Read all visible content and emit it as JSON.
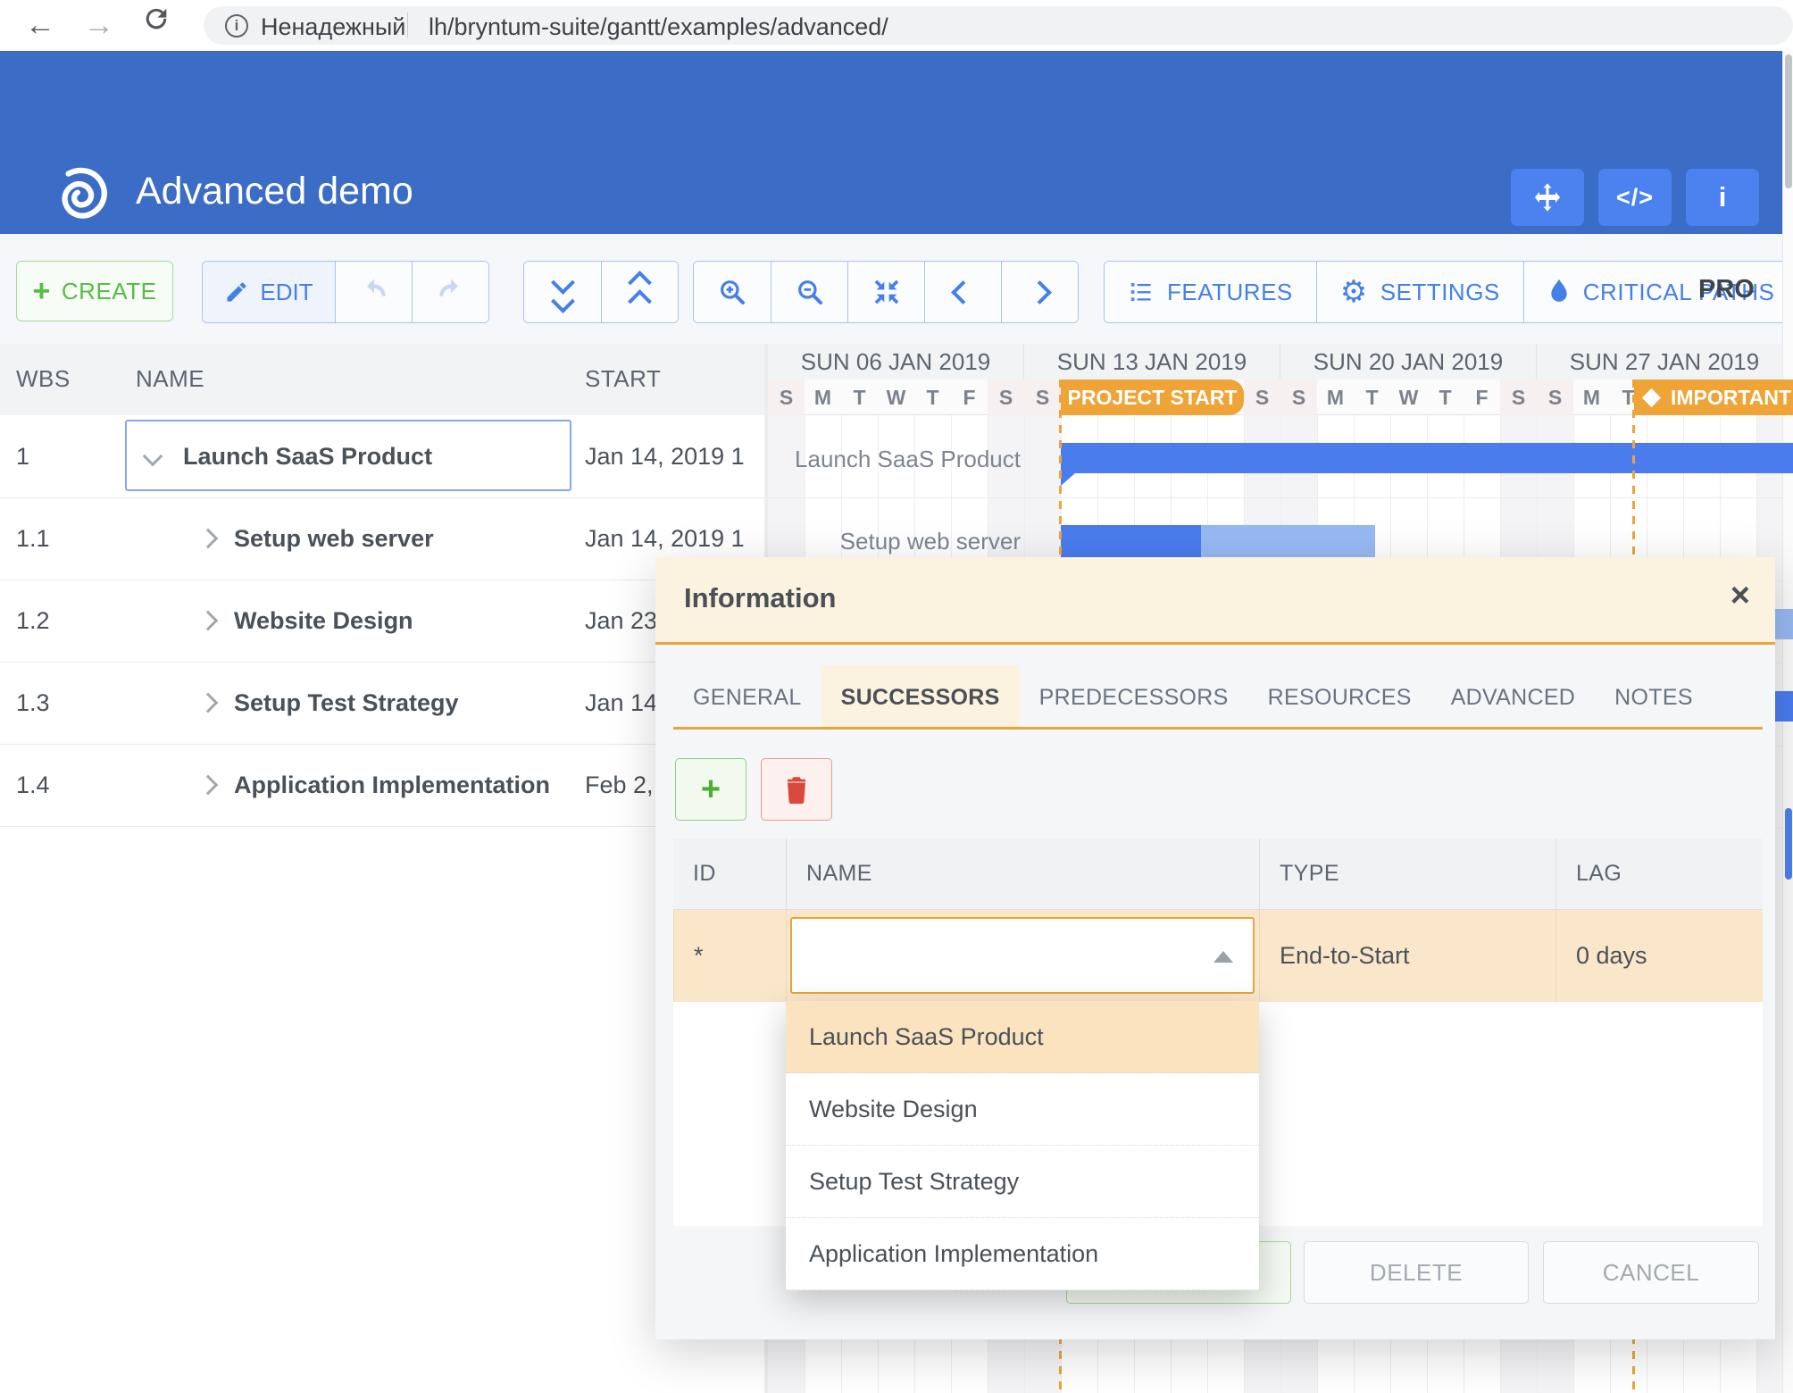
{
  "browser": {
    "security_label": "Ненадежный",
    "url": "lh/bryntum-suite/gantt/examples/advanced/"
  },
  "app_header": {
    "title": "Advanced demo"
  },
  "toolbar": {
    "create": "CREATE",
    "edit": "EDIT",
    "features": "FEATURES",
    "settings": "SETTINGS",
    "critical_paths": "CRITICAL PATHS",
    "project_clipped": "PRO"
  },
  "grid": {
    "columns": {
      "wbs": "WBS",
      "name": "NAME",
      "start": "START"
    },
    "rows": [
      {
        "wbs": "1",
        "name": "Launch SaaS Product",
        "start": "Jan 14, 2019 1",
        "level": 0,
        "expanded": true,
        "selected": true
      },
      {
        "wbs": "1.1",
        "name": "Setup web server",
        "start": "Jan 14, 2019 1",
        "level": 1
      },
      {
        "wbs": "1.2",
        "name": "Website Design",
        "start": "Jan 23",
        "level": 1
      },
      {
        "wbs": "1.3",
        "name": "Setup Test Strategy",
        "start": "Jan 14",
        "level": 1
      },
      {
        "wbs": "1.4",
        "name": "Application Implementation",
        "start": "Feb 2,",
        "level": 1
      }
    ]
  },
  "timeline": {
    "weeks": [
      "SUN 06 JAN 2019",
      "SUN 13 JAN 2019",
      "SUN 20 JAN 2019",
      "SUN 27 JAN 2019"
    ],
    "day_letters": [
      "S",
      "M",
      "T",
      "W",
      "T",
      "F",
      "S"
    ],
    "ranges": [
      {
        "label": "PROJECT START"
      },
      {
        "label": "IMPORTANT"
      }
    ],
    "bar_labels": [
      "Launch SaaS Product",
      "Setup web server"
    ]
  },
  "modal": {
    "title": "Information",
    "close": "×",
    "tabs": [
      {
        "label": "GENERAL"
      },
      {
        "label": "SUCCESSORS",
        "active": true
      },
      {
        "label": "PREDECESSORS"
      },
      {
        "label": "RESOURCES"
      },
      {
        "label": "ADVANCED"
      },
      {
        "label": "NOTES"
      }
    ],
    "grid": {
      "columns": [
        "ID",
        "NAME",
        "TYPE",
        "LAG"
      ],
      "row": {
        "id": "*",
        "name": "",
        "type": "End-to-Start",
        "lag": "0 days"
      }
    },
    "dropdown_items": [
      "Launch SaaS Product",
      "Website Design",
      "Setup Test Strategy",
      "Application Implementation"
    ],
    "buttons": {
      "delete": "DELETE",
      "cancel": "CANCEL"
    }
  },
  "colors": {
    "header_blue": "#3B6CC6",
    "button_blue": "#4B82EF",
    "accent_blue": "#4480E8",
    "green": "#54BE45",
    "orange": "#EEA437",
    "bar_blue": "#4A7CEE",
    "bar_light_blue": "#97B9F3"
  }
}
